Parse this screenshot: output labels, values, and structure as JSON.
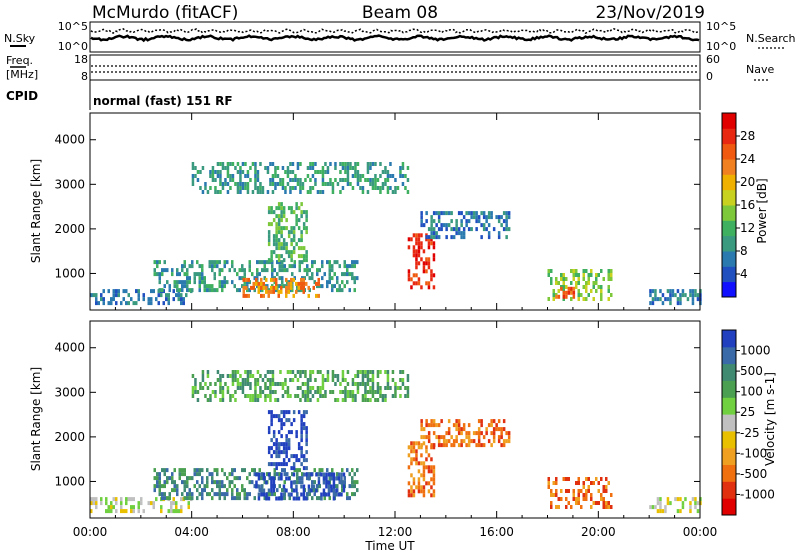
{
  "header": {
    "station": "McMurdo (fitACF)",
    "beam": "Beam 08",
    "date": "23/Nov/2019"
  },
  "status_panels": {
    "nsky_label": "N.Sky",
    "nsearch_label": "N.Search",
    "noise_ticks": [
      "10^5",
      "10^0"
    ],
    "noise_ticks_right": [
      "10^5",
      "10^0"
    ],
    "freq_label": "Freq.",
    "freq_unit": "[MHz]",
    "freq_ticks": [
      "18",
      "8"
    ],
    "nave_label": "Nave",
    "nave_ticks": [
      "60",
      "0"
    ],
    "cpid_label": "CPID",
    "cpid_text": "normal (fast) 151 RF"
  },
  "chart_data": [
    {
      "type": "heatmap",
      "title": "",
      "ylabel": "Slant Range [km]",
      "xlabel": "",
      "x_ticks": [
        "00:00",
        "04:00",
        "08:00",
        "12:00",
        "16:00",
        "20:00",
        "00:00"
      ],
      "y_ticks": [
        "1000",
        "2000",
        "3000",
        "4000"
      ],
      "ylim": [
        180,
        4600
      ],
      "xlim_hours": [
        0,
        24
      ],
      "colorbar": {
        "label": "Power [dB]",
        "ticks": [
          "4",
          "8",
          "12",
          "16",
          "20",
          "24",
          "28"
        ],
        "colors": [
          "#1010ff",
          "#2050c0",
          "#2a7ab0",
          "#3a9a80",
          "#3fb060",
          "#7cc83a",
          "#c8d020",
          "#f0b000",
          "#f08020",
          "#f05a10",
          "#e82810",
          "#e00000"
        ]
      },
      "echo_regions": [
        {
          "t0": 0.0,
          "t1": 4.0,
          "r0": 300,
          "r1": 650,
          "level": 2
        },
        {
          "t0": 2.5,
          "t1": 10.5,
          "r0": 600,
          "r1": 1300,
          "level": 3
        },
        {
          "t0": 6.0,
          "t1": 9.0,
          "r0": 500,
          "r1": 900,
          "level": 8
        },
        {
          "t0": 7.0,
          "t1": 8.5,
          "r0": 1300,
          "r1": 2600,
          "level": 4
        },
        {
          "t0": 4.0,
          "t1": 12.5,
          "r0": 2800,
          "r1": 3500,
          "level": 3
        },
        {
          "t0": 12.5,
          "t1": 13.5,
          "r0": 700,
          "r1": 1900,
          "level": 10
        },
        {
          "t0": 13.0,
          "t1": 16.5,
          "r0": 1800,
          "r1": 2400,
          "level": 2
        },
        {
          "t0": 18.0,
          "t1": 20.5,
          "r0": 450,
          "r1": 1100,
          "level": 5
        },
        {
          "t0": 18.3,
          "t1": 19.0,
          "r0": 500,
          "r1": 700,
          "level": 9
        },
        {
          "t0": 22.0,
          "t1": 24.0,
          "r0": 300,
          "r1": 650,
          "level": 2
        }
      ]
    },
    {
      "type": "heatmap",
      "title": "",
      "ylabel": "Slant Range [km]",
      "xlabel": "Time UT",
      "x_ticks": [
        "00:00",
        "04:00",
        "08:00",
        "12:00",
        "16:00",
        "20:00",
        "00:00"
      ],
      "y_ticks": [
        "1000",
        "2000",
        "3000",
        "4000"
      ],
      "ylim": [
        180,
        4600
      ],
      "xlim_hours": [
        0,
        24
      ],
      "colorbar": {
        "label": "Velocity [m s-1]",
        "ticks": [
          "1000",
          "500",
          "100",
          "25",
          "-25",
          "-100",
          "-500",
          "-1000"
        ],
        "colors": [
          "#2040c0",
          "#3a6aa8",
          "#3f8a70",
          "#4aa050",
          "#70d040",
          "#c0c0c0",
          "#e8c000",
          "#f0a020",
          "#f07010",
          "#e03010",
          "#e00000"
        ]
      },
      "echo_regions": [
        {
          "t0": 0.0,
          "t1": 4.0,
          "r0": 300,
          "r1": 650,
          "level": 5
        },
        {
          "t0": 2.5,
          "t1": 10.5,
          "r0": 600,
          "r1": 1300,
          "level": 2
        },
        {
          "t0": 6.5,
          "t1": 10.0,
          "r0": 600,
          "r1": 1200,
          "level": 0
        },
        {
          "t0": 7.0,
          "t1": 8.5,
          "r0": 1300,
          "r1": 2600,
          "level": 0
        },
        {
          "t0": 4.0,
          "t1": 12.5,
          "r0": 2800,
          "r1": 3500,
          "level": 3
        },
        {
          "t0": 12.5,
          "t1": 13.5,
          "r0": 700,
          "r1": 1900,
          "level": 8
        },
        {
          "t0": 13.0,
          "t1": 16.5,
          "r0": 1800,
          "r1": 2400,
          "level": 8
        },
        {
          "t0": 18.0,
          "t1": 20.5,
          "r0": 450,
          "r1": 1100,
          "level": 8
        },
        {
          "t0": 22.0,
          "t1": 24.0,
          "r0": 300,
          "r1": 650,
          "level": 5
        }
      ]
    }
  ]
}
